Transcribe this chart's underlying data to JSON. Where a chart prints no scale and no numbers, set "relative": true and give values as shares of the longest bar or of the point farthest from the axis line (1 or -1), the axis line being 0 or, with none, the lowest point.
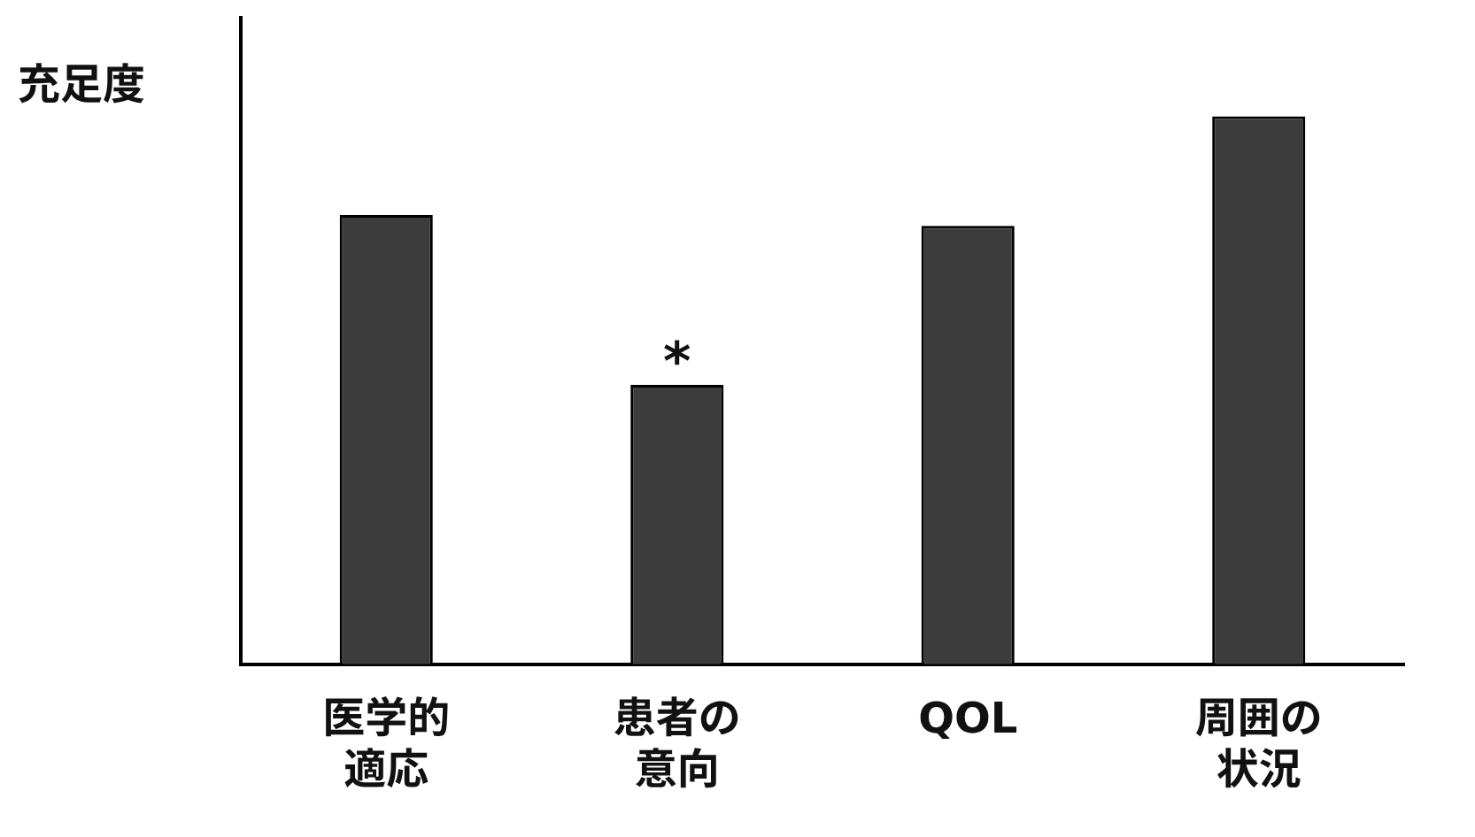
{
  "chart_data": {
    "type": "bar",
    "ylabel": "充足度",
    "categories": [
      "医学的適応",
      "患者の意向",
      "QOL",
      "周囲の状況"
    ],
    "values": [
      0.82,
      0.51,
      0.8,
      1
    ],
    "color": "#3c3c3c",
    "relative": true,
    "grid": false,
    "legend": false,
    "annotations": [
      {
        "text": "*",
        "x": "患者の意向",
        "y": 0.51
      }
    ]
  }
}
